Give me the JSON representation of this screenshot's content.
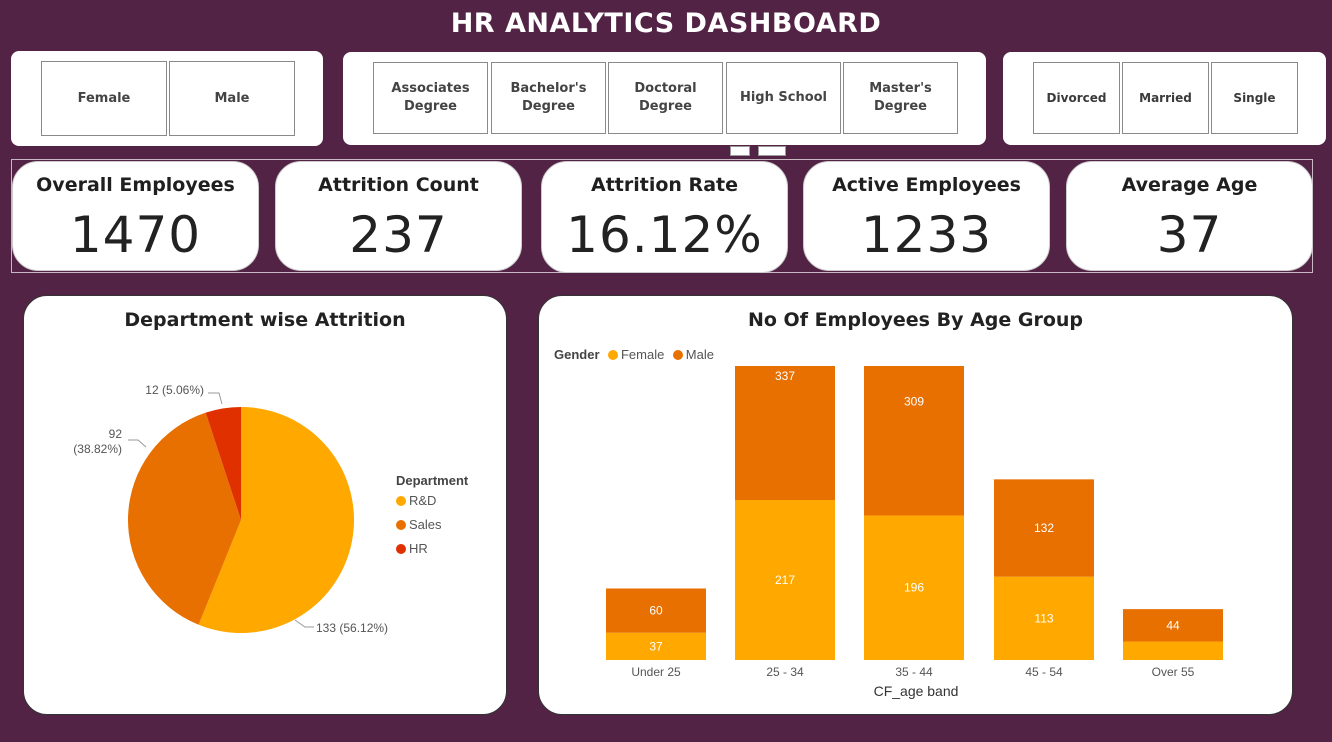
{
  "title": "HR ANALYTICS DASHBOARD",
  "slicers": {
    "gender": [
      "Female",
      "Male"
    ],
    "education": [
      "Associates Degree",
      "Bachelor's Degree",
      "Doctoral Degree",
      "High School",
      "Master's Degree"
    ],
    "marital": [
      "Divorced",
      "Married",
      "Single"
    ]
  },
  "kpis": [
    {
      "label": "Overall Employees",
      "value": "1470"
    },
    {
      "label": "Attrition Count",
      "value": "237"
    },
    {
      "label": "Attrition Rate",
      "value": "16.12%"
    },
    {
      "label": "Active Employees",
      "value": "1233"
    },
    {
      "label": "Average Age",
      "value": "37"
    }
  ],
  "dept_chart": {
    "title": "Department wise Attrition",
    "legend_title": "Department",
    "colors": {
      "R&D": "#FFA800",
      "Sales": "#E87000",
      "HR": "#E03000"
    }
  },
  "age_chart": {
    "title": "No Of Employees By Age Group",
    "legend_title": "Gender",
    "colors": {
      "Female": "#FFA800",
      "Male": "#E87000"
    }
  },
  "chart_data": [
    {
      "type": "pie",
      "title": "Department wise Attrition",
      "legend_title": "Department",
      "categories": [
        "R&D",
        "Sales",
        "HR"
      ],
      "values": [
        133,
        92,
        12
      ],
      "labels": [
        "133 (56.12%)",
        "92 (38.82%)",
        "12 (5.06%)"
      ]
    },
    {
      "type": "bar",
      "stacked": true,
      "title": "No Of Employees By Age Group",
      "legend_title": "Gender",
      "xlabel": "CF_age band",
      "categories": [
        "Under 25",
        "25 - 34",
        "35 - 44",
        "45 - 54",
        "Over 55"
      ],
      "series": [
        {
          "name": "Female",
          "values": [
            37,
            217,
            196,
            113,
            25
          ]
        },
        {
          "name": "Male",
          "values": [
            60,
            337,
            309,
            132,
            44
          ]
        }
      ],
      "data_labels": {
        "Female": [
          "37",
          "217",
          "196",
          "113",
          ""
        ],
        "Male": [
          "60",
          "337",
          "309",
          "132",
          "44"
        ]
      },
      "ylim": [
        0,
        600
      ]
    }
  ]
}
